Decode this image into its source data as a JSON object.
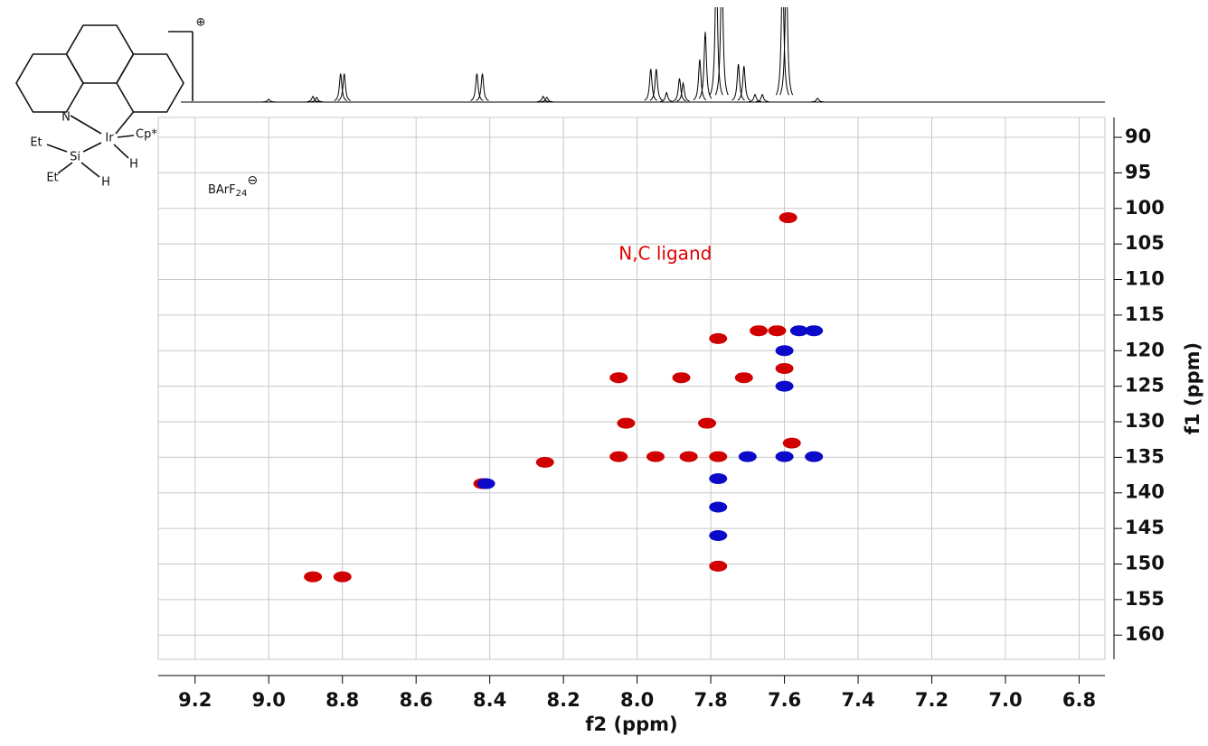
{
  "structure": {
    "n": "N",
    "ir": "Ir",
    "cp": "Cp*",
    "si": "Si",
    "et1": "Et",
    "et2": "Et",
    "h1": "H",
    "h2": "H",
    "charge": "⊕",
    "anion": "BArF",
    "anion_sub": "24",
    "anion_charge": "⊖"
  },
  "chart_data": [
    {
      "type": "spectrum",
      "x": [
        9.0,
        8.88,
        8.87,
        8.805,
        8.795,
        8.435,
        8.42,
        8.255,
        8.245,
        7.963,
        7.948,
        7.92,
        7.885,
        7.875,
        7.83,
        7.815,
        7.785,
        7.77,
        7.725,
        7.71,
        7.68,
        7.66,
        7.605,
        7.595,
        7.51
      ],
      "values": [
        3,
        6,
        5,
        30,
        30,
        30,
        30,
        6,
        5,
        35,
        35,
        10,
        25,
        20,
        45,
        74,
        150,
        150,
        40,
        38,
        8,
        8,
        150,
        150,
        4
      ],
      "ylim": [
        0,
        100
      ],
      "xlim": [
        9.3,
        6.73
      ],
      "color": "#000000"
    },
    {
      "type": "hsqc",
      "xlabel": "f2 (ppm)",
      "ylabel": "f1 (ppm)",
      "xlim": [
        9.3,
        6.73
      ],
      "ylim": [
        87.2,
        163.4
      ],
      "xticks": [
        9.2,
        {
          "value": 9,
          "label": "9.0"
        },
        8.8,
        8.6,
        8.4,
        8.2,
        {
          "value": 8,
          "label": "8.0"
        },
        7.8,
        7.6,
        7.4,
        7.2,
        {
          "value": 7,
          "label": "7.0"
        },
        6.8
      ],
      "yticks": [
        90,
        95,
        100,
        105,
        110,
        115,
        120,
        125,
        130,
        135,
        140,
        145,
        150,
        155,
        160
      ],
      "grid": true,
      "annotations": [
        {
          "text": "N,C ligand",
          "x": 8.05,
          "y": 106.5,
          "color": "#e00000"
        }
      ],
      "series": [
        {
          "color": "#d10000",
          "x": [
            7.59,
            7.62,
            7.67,
            7.78,
            7.6,
            8.05,
            7.88,
            7.71,
            8.03,
            7.81,
            7.58,
            7.78,
            7.86,
            7.95,
            8.05,
            8.42,
            8.25,
            7.78,
            8.8,
            8.88
          ],
          "y": [
            101.3,
            117.2,
            117.2,
            118.3,
            122.5,
            123.8,
            123.8,
            123.8,
            130.2,
            130.2,
            133,
            134.9,
            134.9,
            134.9,
            134.9,
            138.7,
            135.7,
            150.3,
            151.8,
            151.8
          ]
        },
        {
          "color": "#0a0ac8",
          "x": [
            7.52,
            7.56,
            7.6,
            7.6,
            7.7,
            7.6,
            7.52,
            7.78,
            7.78,
            7.78,
            8.41
          ],
          "y": [
            117.2,
            117.2,
            120,
            125,
            134.9,
            134.9,
            134.9,
            138,
            142,
            146,
            138.7
          ]
        }
      ]
    }
  ]
}
